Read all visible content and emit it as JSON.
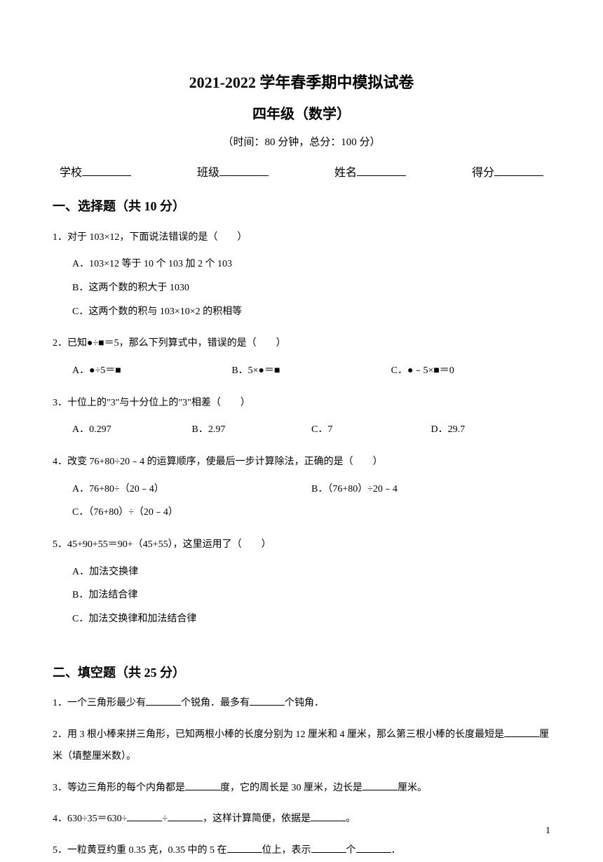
{
  "header": {
    "title": "2021-2022 学年春季期中模拟试卷",
    "subtitle": "四年级（数学）",
    "timeScore": "（时间：80 分钟，总分：100 分）",
    "infoLabels": {
      "school": "学校",
      "class": "班级",
      "name": "姓名",
      "score": "得分"
    }
  },
  "section1": {
    "title": "一、选择题（共 10 分）",
    "questions": [
      {
        "text": "1．对于 103×12，下面说法错误的是（　　）",
        "options": [
          "A．103×12 等于 10 个 103 加 2 个 103",
          "B．这两个数的积大于 1030",
          "C．这两个数的积与 103×10×2 的积相等"
        ],
        "layout": "vertical"
      },
      {
        "text": "2．已知●÷■＝5，那么下列算式中，错误的是（　　）",
        "options": [
          "A．●÷5＝■",
          "B．5×●＝■",
          "C．●﹣5×■＝0"
        ],
        "layout": "row3"
      },
      {
        "text": "3．十位上的\"3\"与十分位上的\"3\"相差（　　）",
        "options": [
          "A．0.297",
          "B．2.97",
          "C．7",
          "D．29.7"
        ],
        "layout": "row4"
      },
      {
        "text": "4．改变 76+80÷20﹣4 的运算顺序，使最后一步计算除法，正确的是（　　）",
        "options": [
          "A．76+80÷（20﹣4）",
          "B．（76+80）÷20﹣4",
          "C．（76+80）÷（20﹣4）"
        ],
        "layout": "row2then1"
      },
      {
        "text": "5．45+90+55＝90+（45+55），这里运用了（　　）",
        "options": [
          "A．加法交换律",
          "B．加法结合律",
          "C．加法交换律和加法结合律"
        ],
        "layout": "vertical"
      }
    ]
  },
  "section2": {
    "title": "二、填空题（共 25 分）",
    "questions": [
      {
        "parts": [
          "1．一个三角形最少有",
          "个锐角．最多有",
          "个钝角．"
        ]
      },
      {
        "parts": [
          "2．用 3 根小棒来拼三角形，已知两根小棒的长度分别为 12 厘米和 4 厘米，那么第三根小棒的长度最短是",
          "厘米（填整厘米数）。"
        ]
      },
      {
        "parts": [
          "3．等边三角形的每个内角都是",
          "度，它的周长是 30 厘米，边长是",
          "厘米。"
        ]
      },
      {
        "parts": [
          "4．630÷35＝630÷",
          "÷",
          "，这样计算简便，依据是",
          "。"
        ]
      },
      {
        "parts": [
          "5．一粒黄豆约重 0.35 克，0.35 中的 5 在",
          "位上，表示",
          "个",
          "．"
        ]
      }
    ]
  },
  "pageNumber": "1"
}
